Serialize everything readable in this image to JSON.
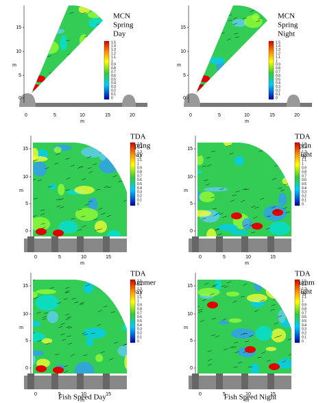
{
  "panels": [
    {
      "label": [
        "MCN",
        "Spring",
        "Day"
      ],
      "y_ticks": [
        "15",
        "10",
        "5",
        "0"
      ],
      "y_axis": "m",
      "x_ticks": [
        "0",
        "5",
        "10",
        "15",
        "20"
      ],
      "x_axis": "m",
      "colorbar": [
        "1.5",
        "1.4",
        "1.3",
        "1.2",
        "1.1",
        "1",
        "0.9",
        "0.8",
        "0.7",
        "0.6",
        "0.5",
        "0.4",
        "0.3",
        "0.2",
        "0.1",
        "0"
      ]
    },
    {
      "label": [
        "MCN",
        "Spring",
        "Night"
      ],
      "y_ticks": [
        "15",
        "10",
        "5",
        "0"
      ],
      "y_axis": "m",
      "x_ticks": [
        "0",
        "5",
        "10",
        "15",
        "20"
      ],
      "x_axis": "m",
      "colorbar": [
        "1.5",
        "1.4",
        "1.3",
        "1.2",
        "1.1",
        "1",
        "0.9",
        "0.8",
        "0.7",
        "0.6",
        "0.5",
        "0.4",
        "0.3",
        "0.2",
        "0.1",
        "0"
      ]
    },
    {
      "label": [
        "TDA",
        "Spring",
        "Day"
      ],
      "y_ticks": [
        "15",
        "10",
        "5",
        "0"
      ],
      "y_axis": "m",
      "x_ticks": [
        "0",
        "5",
        "10",
        "15"
      ],
      "x_axis": "m",
      "colorbar": [
        "1.5",
        "1.4",
        "1.3",
        "1.2",
        "1.1",
        "1",
        "0.9",
        "0.8",
        "0.7",
        "0.6",
        "0.5",
        "0.4",
        "0.3",
        "0.2",
        "0.1",
        "0"
      ]
    },
    {
      "label": [
        "TDA",
        "Sprin",
        "Night"
      ],
      "y_ticks": [
        "15",
        "10",
        "5",
        "0"
      ],
      "y_axis": "m",
      "x_ticks": [
        "0",
        "5",
        "10",
        "15"
      ],
      "x_axis": "m",
      "colorbar": [
        "1.5",
        "1.4",
        "1.3",
        "1.2",
        "1.1",
        "1",
        "0.9",
        "0.8",
        "0.7",
        "0.6",
        "0.5",
        "0.4",
        "0.3",
        "0.2",
        "0.1",
        "0"
      ]
    },
    {
      "label": [
        "TDA",
        "Summer",
        "Day"
      ],
      "y_ticks": [
        "15",
        "10",
        "5",
        "0"
      ],
      "y_axis": "m",
      "x_ticks": [
        "0",
        "5",
        "10",
        "15"
      ],
      "x_axis": "m",
      "colorbar": [
        "1.5",
        "1.4",
        "1.3",
        "1.2",
        "1.1",
        "1",
        "0.9",
        "0.8",
        "0.7",
        "0.6",
        "0.5",
        "0.4",
        "0.3",
        "0.2",
        "0.1",
        "0"
      ]
    },
    {
      "label": [
        "TDA",
        "Summ",
        "Night"
      ],
      "y_ticks": [
        "15",
        "10",
        "5",
        "0"
      ],
      "y_axis": "m",
      "x_ticks": [
        "0",
        "5",
        "10",
        "15"
      ],
      "x_axis": "m",
      "colorbar": [
        "1.5",
        "1.4",
        "1.3",
        "1.2",
        "1.1",
        "1",
        "0.9",
        "0.8",
        "0.7",
        "0.6",
        "0.5",
        "0.4",
        "0.3",
        "0.2",
        "0.1",
        "0"
      ]
    }
  ],
  "captions": [
    "Fish Speed Day",
    "Fish Speed Night"
  ]
}
